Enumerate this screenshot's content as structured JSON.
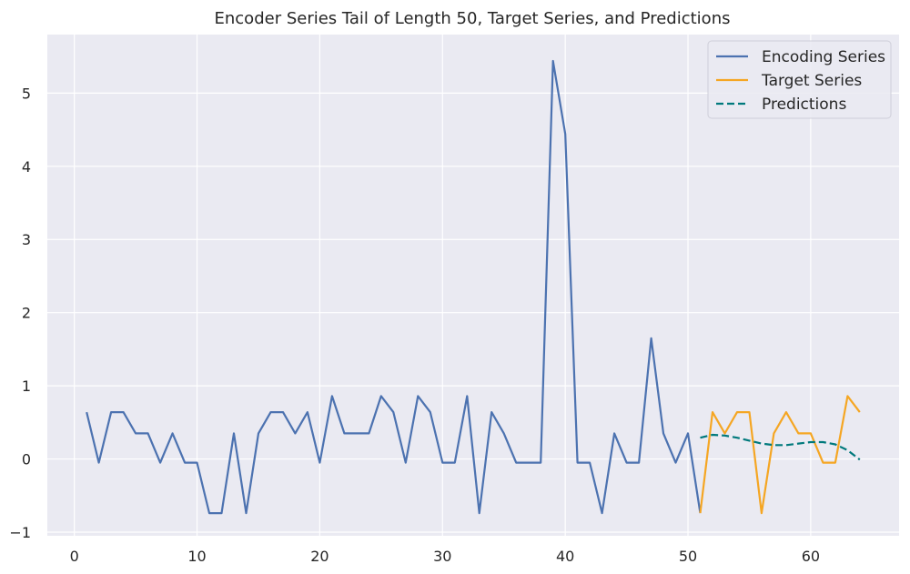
{
  "chart_data": {
    "type": "line",
    "title": "Encoder Series Tail of Length 50, Target Series, and Predictions",
    "xlabel": "",
    "ylabel": "",
    "xlim": [
      -2.2,
      67.2
    ],
    "ylim": [
      -1.05,
      5.8
    ],
    "xticks": [
      0,
      10,
      20,
      30,
      40,
      50,
      60
    ],
    "yticks": [
      -1,
      0,
      1,
      2,
      3,
      4,
      5
    ],
    "xtick_labels": [
      "0",
      "10",
      "20",
      "30",
      "40",
      "50",
      "60"
    ],
    "ytick_labels": [
      "−1",
      "0",
      "1",
      "2",
      "3",
      "4",
      "5"
    ],
    "grid": true,
    "legend_position": "top-right",
    "series": [
      {
        "name": "Encoding Series",
        "color": "#4c72b0",
        "style": "solid",
        "x": [
          1,
          2,
          3,
          4,
          5,
          6,
          7,
          8,
          9,
          10,
          11,
          12,
          13,
          14,
          15,
          16,
          17,
          18,
          19,
          20,
          21,
          22,
          23,
          24,
          25,
          26,
          27,
          28,
          29,
          30,
          31,
          32,
          33,
          34,
          35,
          36,
          37,
          38,
          39,
          40,
          41,
          42,
          43,
          44,
          45,
          46,
          47,
          48,
          49,
          50,
          51
        ],
        "y": [
          0.64,
          -0.05,
          0.64,
          0.64,
          0.35,
          0.35,
          -0.05,
          0.35,
          -0.05,
          -0.05,
          -0.74,
          -0.74,
          0.35,
          -0.74,
          0.35,
          0.64,
          0.64,
          0.35,
          0.64,
          -0.05,
          0.86,
          0.35,
          0.35,
          0.35,
          0.86,
          0.64,
          -0.05,
          0.86,
          0.64,
          -0.05,
          -0.05,
          0.86,
          -0.74,
          0.64,
          0.35,
          -0.05,
          -0.05,
          -0.05,
          5.44,
          4.44,
          -0.05,
          -0.05,
          -0.74,
          0.35,
          -0.05,
          -0.05,
          1.65,
          0.35,
          -0.05,
          0.35,
          -0.74
        ]
      },
      {
        "name": "Target Series",
        "color": "#f5a623",
        "style": "solid",
        "x": [
          51,
          52,
          53,
          54,
          55,
          56,
          57,
          58,
          59,
          60,
          61,
          62,
          63,
          64
        ],
        "y": [
          -0.74,
          0.64,
          0.35,
          0.64,
          0.64,
          -0.74,
          0.35,
          0.64,
          0.35,
          0.35,
          -0.05,
          -0.05,
          0.86,
          0.64
        ]
      },
      {
        "name": "Predictions",
        "color": "#00797c",
        "style": "dashed",
        "x": [
          51,
          52,
          53,
          54,
          55,
          56,
          57,
          58,
          59,
          60,
          61,
          62,
          63,
          64
        ],
        "y": [
          0.29,
          0.33,
          0.32,
          0.29,
          0.25,
          0.21,
          0.19,
          0.19,
          0.21,
          0.23,
          0.23,
          0.2,
          0.12,
          -0.01
        ]
      }
    ]
  },
  "colors": {
    "plot_background": "#eaeaf2",
    "grid": "#ffffff"
  }
}
